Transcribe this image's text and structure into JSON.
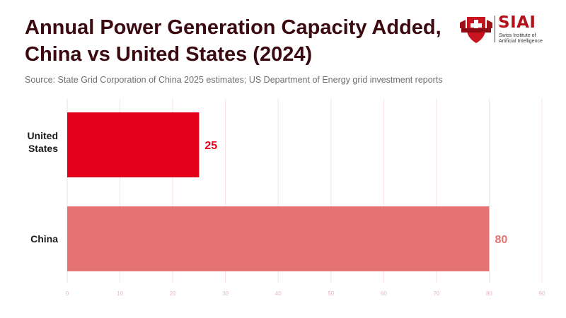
{
  "title": "Annual Power Generation Capacity Added, China vs United States (2024)",
  "source": "Source: State Grid Corporation of China 2025 estimates; US Department of Energy grid investment reports",
  "logo": {
    "word": "SIAI",
    "subtitle_line1": "Swiss Institute of",
    "subtitle_line2": "Artificial Intelligence",
    "color": "#b3121b"
  },
  "chart_data": {
    "type": "bar",
    "orientation": "horizontal",
    "categories": [
      "United States",
      "China"
    ],
    "values": [
      25,
      80
    ],
    "colors": [
      "#e3001b",
      "#e57373"
    ],
    "xlim": [
      0,
      90
    ],
    "xticks": [
      0,
      10,
      20,
      30,
      40,
      50,
      60,
      70,
      80,
      90
    ],
    "grid": true
  }
}
